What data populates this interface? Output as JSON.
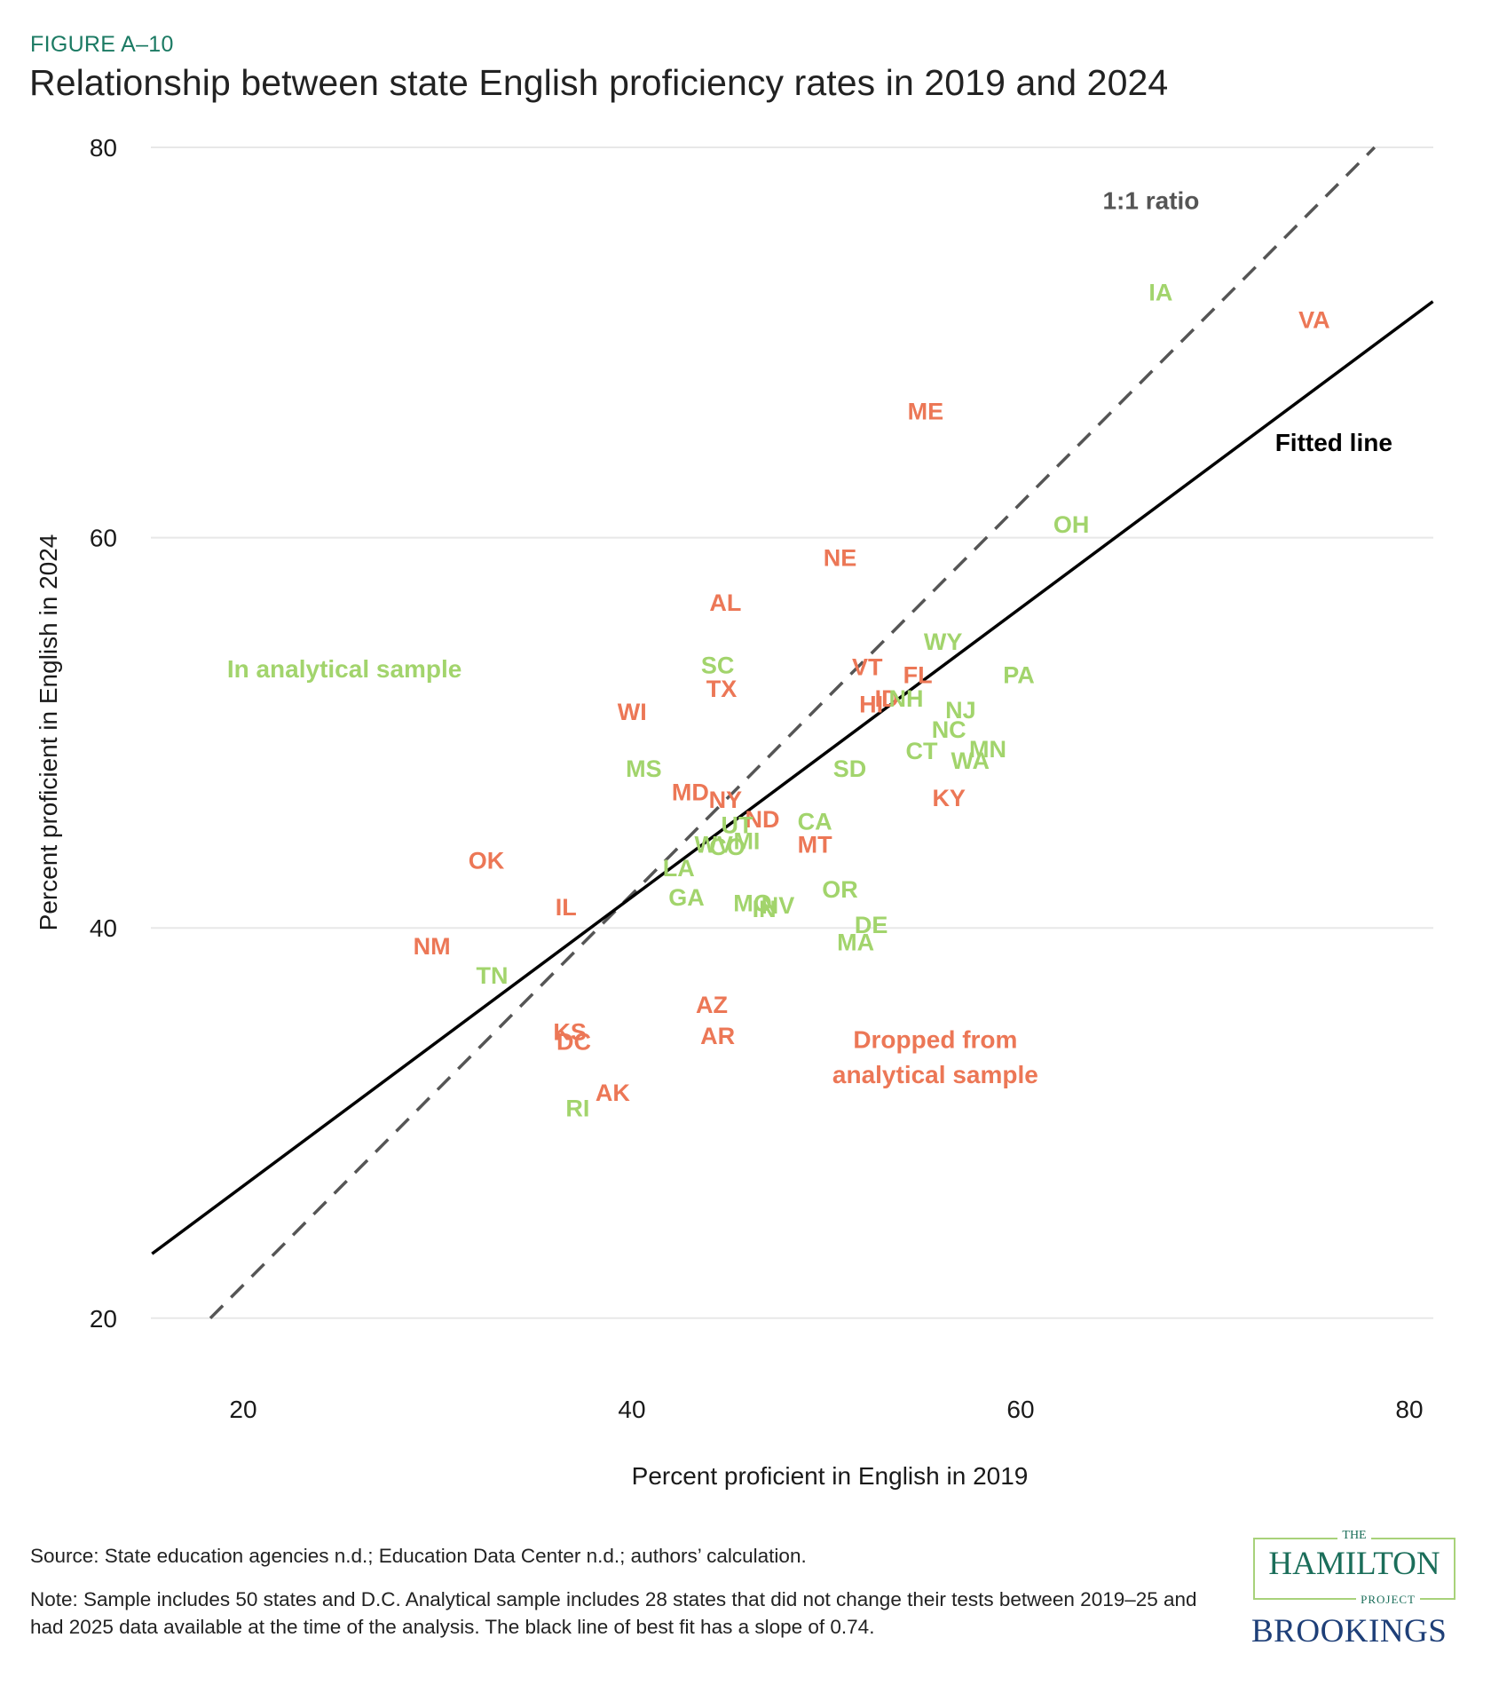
{
  "header": {
    "figure_label": "FIGURE A–10",
    "title": "Relationship between state English proficiency rates in 2019 and 2024"
  },
  "colors": {
    "in_sample": "#a2d46c",
    "dropped": "#ec7756",
    "fitted_line": "#000000",
    "ratio_line": "#555555",
    "gridline": "#e8e8e8",
    "figure_label": "#1b7a63"
  },
  "chart_data": {
    "type": "scatter",
    "title": "Relationship between state English proficiency rates in 2019 and 2024",
    "xlabel": "Percent proficient in English in 2019",
    "ylabel": "Percent proficient in English in 2024",
    "xlim": [
      17,
      83
    ],
    "ylim": [
      20,
      80
    ],
    "x_ticks": [
      "20",
      "40",
      "60",
      "80"
    ],
    "y_ticks": [
      "20",
      "40",
      "60",
      "80"
    ],
    "grid": "horizontal",
    "marker": "text-label",
    "groups": [
      {
        "name": "In analytical sample",
        "key": "in"
      },
      {
        "name": "Dropped from analytical sample",
        "key": "dropped"
      }
    ],
    "points": [
      {
        "label": "IA",
        "x": 68.9,
        "y": 72.6,
        "group": "in"
      },
      {
        "label": "VA",
        "x": 76.8,
        "y": 71.2,
        "group": "dropped"
      },
      {
        "label": "ME",
        "x": 56.8,
        "y": 66.5,
        "group": "dropped"
      },
      {
        "label": "OH",
        "x": 64.3,
        "y": 60.7,
        "group": "in"
      },
      {
        "label": "NE",
        "x": 52.4,
        "y": 59.0,
        "group": "dropped"
      },
      {
        "label": "AL",
        "x": 46.5,
        "y": 56.7,
        "group": "dropped"
      },
      {
        "label": "SC",
        "x": 46.1,
        "y": 53.5,
        "group": "in"
      },
      {
        "label": "TX",
        "x": 46.3,
        "y": 52.3,
        "group": "dropped"
      },
      {
        "label": "WI",
        "x": 41.7,
        "y": 51.1,
        "group": "dropped"
      },
      {
        "label": "VT",
        "x": 53.8,
        "y": 53.4,
        "group": "dropped"
      },
      {
        "label": "FL",
        "x": 56.4,
        "y": 53.0,
        "group": "dropped"
      },
      {
        "label": "WY",
        "x": 57.7,
        "y": 54.7,
        "group": "in"
      },
      {
        "label": "PA",
        "x": 61.6,
        "y": 53.0,
        "group": "in"
      },
      {
        "label": "HI",
        "x": 54.0,
        "y": 51.5,
        "group": "dropped"
      },
      {
        "label": "ID",
        "x": 54.8,
        "y": 51.8,
        "group": "dropped"
      },
      {
        "label": "NH",
        "x": 55.8,
        "y": 51.8,
        "group": "in"
      },
      {
        "label": "NJ",
        "x": 58.6,
        "y": 51.2,
        "group": "in"
      },
      {
        "label": "NC",
        "x": 58.0,
        "y": 50.2,
        "group": "in"
      },
      {
        "label": "MN",
        "x": 60.0,
        "y": 49.2,
        "group": "in"
      },
      {
        "label": "CT",
        "x": 56.6,
        "y": 49.1,
        "group": "in"
      },
      {
        "label": "WA",
        "x": 59.1,
        "y": 48.6,
        "group": "in"
      },
      {
        "label": "SD",
        "x": 52.9,
        "y": 48.2,
        "group": "in"
      },
      {
        "label": "KY",
        "x": 58.0,
        "y": 46.7,
        "group": "dropped"
      },
      {
        "label": "MS",
        "x": 42.3,
        "y": 48.2,
        "group": "in"
      },
      {
        "label": "MD",
        "x": 44.7,
        "y": 47.0,
        "group": "dropped"
      },
      {
        "label": "NY",
        "x": 46.5,
        "y": 46.6,
        "group": "dropped"
      },
      {
        "label": "ND",
        "x": 48.4,
        "y": 45.6,
        "group": "dropped"
      },
      {
        "label": "UT",
        "x": 47.1,
        "y": 45.3,
        "group": "in"
      },
      {
        "label": "CA",
        "x": 51.1,
        "y": 45.5,
        "group": "in"
      },
      {
        "label": "MT",
        "x": 51.1,
        "y": 44.3,
        "group": "dropped"
      },
      {
        "label": "WV",
        "x": 45.9,
        "y": 44.3,
        "group": "in"
      },
      {
        "label": "CO",
        "x": 46.6,
        "y": 44.2,
        "group": "in"
      },
      {
        "label": "MI",
        "x": 47.6,
        "y": 44.5,
        "group": "in"
      },
      {
        "label": "LA",
        "x": 44.1,
        "y": 43.1,
        "group": "in"
      },
      {
        "label": "GA",
        "x": 44.5,
        "y": 41.6,
        "group": "in"
      },
      {
        "label": "MO",
        "x": 47.9,
        "y": 41.3,
        "group": "in"
      },
      {
        "label": "IN",
        "x": 48.5,
        "y": 41.0,
        "group": "in"
      },
      {
        "label": "NV",
        "x": 49.2,
        "y": 41.2,
        "group": "in"
      },
      {
        "label": "OR",
        "x": 52.4,
        "y": 42.0,
        "group": "in"
      },
      {
        "label": "DE",
        "x": 54.0,
        "y": 40.2,
        "group": "in"
      },
      {
        "label": "MA",
        "x": 53.2,
        "y": 39.3,
        "group": "in"
      },
      {
        "label": "OK",
        "x": 34.2,
        "y": 43.5,
        "group": "dropped"
      },
      {
        "label": "IL",
        "x": 38.3,
        "y": 41.1,
        "group": "dropped"
      },
      {
        "label": "NM",
        "x": 31.4,
        "y": 39.1,
        "group": "dropped"
      },
      {
        "label": "TN",
        "x": 34.5,
        "y": 37.6,
        "group": "in"
      },
      {
        "label": "AZ",
        "x": 45.8,
        "y": 36.1,
        "group": "dropped"
      },
      {
        "label": "AR",
        "x": 46.1,
        "y": 34.5,
        "group": "dropped"
      },
      {
        "label": "KS",
        "x": 38.5,
        "y": 34.7,
        "group": "dropped"
      },
      {
        "label": "DC",
        "x": 38.7,
        "y": 34.2,
        "group": "dropped"
      },
      {
        "label": "AK",
        "x": 40.7,
        "y": 31.6,
        "group": "dropped"
      },
      {
        "label": "RI",
        "x": 38.9,
        "y": 30.8,
        "group": "in"
      }
    ],
    "lines": {
      "fitted": {
        "label": "Fitted line",
        "slope": 0.74,
        "from": [
          17.0,
          23.3
        ],
        "to": [
          82.9,
          72.1
        ]
      },
      "ratio": {
        "label": "1:1 ratio",
        "from": [
          20,
          20
        ],
        "to": [
          79.9,
          80
        ]
      }
    },
    "annotations": [
      {
        "text": "1:1 ratio",
        "x": 68.4,
        "y": 77.3,
        "kind": "ratio"
      },
      {
        "text": "Fitted line",
        "x": 77.8,
        "y": 64.9,
        "kind": "fitted"
      },
      {
        "text": "In analytical sample",
        "x": 26.9,
        "y": 53.3,
        "kind": "in"
      },
      {
        "text": "Dropped from",
        "x": 57.3,
        "y": 34.3,
        "kind": "dropped"
      },
      {
        "text": "analytical sample",
        "x": 57.3,
        "y": 32.5,
        "kind": "dropped"
      }
    ]
  },
  "footer": {
    "source": "Source: State education agencies n.d.; Education Data Center n.d.; authors’ calculation.",
    "note": "Note: Sample includes 50 states and D.C. Analytical sample includes 28 states that did not change their tests between 2019–25 and had 2025 data available at the time of the analysis. The black line of best fit has a slope of 0.74."
  },
  "logos": {
    "hamilton_the": "THE",
    "hamilton_name": "HAMILTON",
    "hamilton_project": "PROJECT",
    "brookings": "BROOKINGS"
  }
}
